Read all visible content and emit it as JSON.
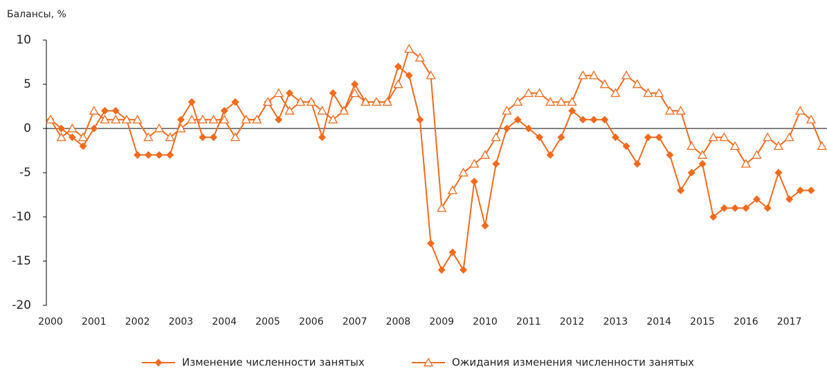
{
  "chart_data": {
    "type": "line",
    "ylabel": "Балансы, %",
    "categories": [
      "2000",
      null,
      null,
      null,
      "2001",
      null,
      null,
      null,
      "2002",
      null,
      null,
      null,
      "2003",
      null,
      null,
      null,
      "2004",
      null,
      null,
      null,
      "2005",
      null,
      null,
      null,
      "2006",
      null,
      null,
      null,
      "2007",
      null,
      null,
      null,
      "2008",
      null,
      null,
      null,
      "2009",
      null,
      null,
      null,
      "2010",
      null,
      null,
      null,
      "2011",
      null,
      null,
      null,
      "2012",
      null,
      null,
      null,
      "2013",
      null,
      null,
      null,
      "2014",
      null,
      null,
      null,
      "2015",
      null,
      null,
      null,
      "2016",
      null,
      null,
      null,
      "2017",
      null,
      null,
      null
    ],
    "series": [
      {
        "name": "Изменение численности занятых",
        "color": "#f26a1b",
        "marker": "diamond",
        "values": [
          1,
          0,
          -1,
          -2,
          0,
          2,
          2,
          1,
          -3,
          -3,
          -3,
          -3,
          1,
          3,
          -1,
          -1,
          2,
          3,
          1,
          1,
          3,
          1,
          4,
          3,
          3,
          -1,
          4,
          2,
          5,
          3,
          3,
          3,
          7,
          6,
          1,
          -13,
          -16,
          -14,
          -16,
          -6,
          -11,
          -4,
          0,
          1,
          0,
          -1,
          -3,
          -1,
          2,
          1,
          1,
          1,
          -1,
          -2,
          -4,
          -1,
          -1,
          -3,
          -7,
          -5,
          -4,
          -10,
          -9,
          -9,
          -9,
          -8,
          -9,
          -5,
          -8,
          -7,
          -7,
          null
        ]
      },
      {
        "name": "Ожидания изменения численности занятых",
        "color": "#f26a1b",
        "marker": "triangle",
        "values": [
          1,
          -1,
          0,
          -1,
          2,
          1,
          1,
          1,
          1,
          -1,
          0,
          -1,
          0,
          1,
          1,
          1,
          1,
          -1,
          1,
          1,
          3,
          4,
          2,
          3,
          3,
          2,
          1,
          2,
          4,
          3,
          3,
          3,
          5,
          9,
          8,
          6,
          -9,
          -7,
          -5,
          -4,
          -3,
          -1,
          2,
          3,
          4,
          4,
          3,
          3,
          3,
          6,
          6,
          5,
          4,
          6,
          5,
          4,
          4,
          2,
          2,
          -2,
          -3,
          -1,
          -1,
          -2,
          -4,
          -3,
          -1,
          -2,
          -1,
          2,
          1,
          -2
        ]
      }
    ],
    "ylim": [
      -20,
      10
    ],
    "yticks": [
      -20,
      -15,
      -10,
      -5,
      0,
      5,
      10
    ],
    "grid": false
  }
}
